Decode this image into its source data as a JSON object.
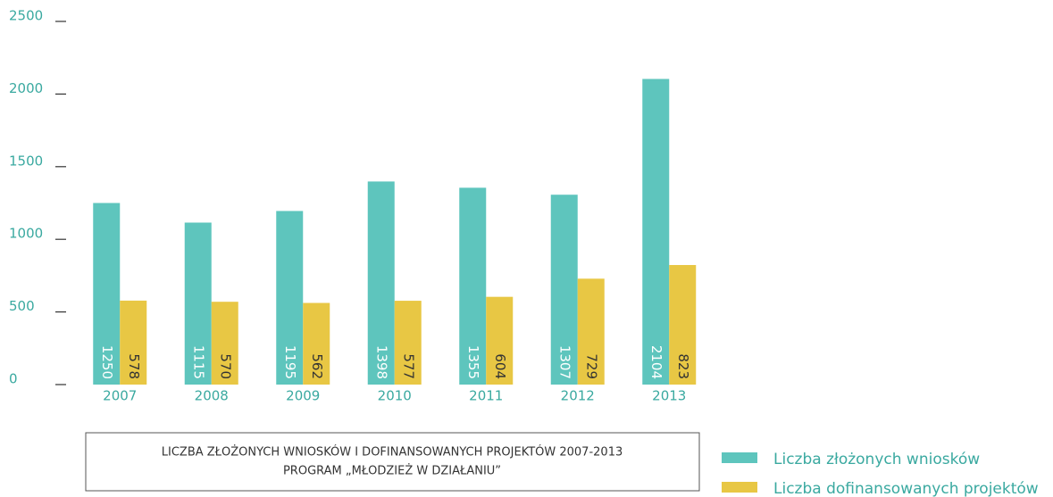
{
  "chart_data": {
    "type": "bar",
    "title": "LICZBA ZŁOŻONYCH WNIOSKÓW I DOFINANSOWANYCH PROJEKTÓW 2007-2013",
    "subtitle": "PROGRAM „MŁODZIEŻ W DZIAŁANIU”",
    "categories": [
      "2007",
      "2008",
      "2009",
      "2010",
      "2011",
      "2012",
      "2013"
    ],
    "series": [
      {
        "name": "Liczba złożonych wniosków",
        "color": "#5ec5bd",
        "values": [
          1250,
          1115,
          1195,
          1398,
          1355,
          1307,
          2104
        ]
      },
      {
        "name": "Liczba dofinansowanych projektów",
        "color": "#e8c744",
        "values": [
          578,
          570,
          562,
          577,
          604,
          729,
          823
        ]
      }
    ],
    "ylim": [
      0,
      2500
    ],
    "yticks": [
      0,
      500,
      1000,
      1500,
      2000,
      2500
    ],
    "legend": "bottom-right"
  }
}
